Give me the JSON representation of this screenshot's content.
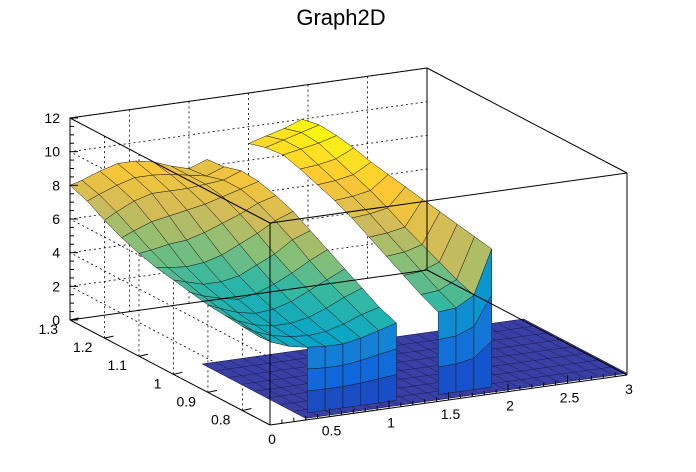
{
  "chart_data": {
    "type": "surface3d",
    "title": "Graph2D",
    "x_ticks": [
      "0",
      "0.5",
      "1",
      "1.5",
      "2",
      "2.5",
      "3"
    ],
    "y_ticks": [
      "0.8",
      "0.9",
      "1",
      "1.1",
      "1.2",
      "1.3"
    ],
    "z_ticks": [
      "0",
      "2",
      "4",
      "6",
      "8",
      "10",
      "12"
    ],
    "xlim": [
      0,
      3
    ],
    "ylim": [
      0.72,
      1.3
    ],
    "zlim": [
      0,
      12
    ],
    "grid": true,
    "colormap": [
      "#352a87",
      "#0f5cdd",
      "#1481d6",
      "#06a4ca",
      "#2eb7a4",
      "#87bf77",
      "#d1bb59",
      "#fec832",
      "#f9fb0e"
    ],
    "gap_x": [
      1.15,
      1.48
    ],
    "rows": [
      {
        "y": 1.3,
        "z": [
          8.0,
          8.2,
          8.6,
          8.9,
          8.9,
          8.7,
          8.3,
          8.0,
          8.4,
          8.8,
          9.0,
          9.3,
          9.6,
          10.0
        ]
      },
      {
        "y": 1.25,
        "z": [
          7.6,
          7.9,
          8.3,
          8.6,
          8.6,
          8.5,
          8.3,
          8.1,
          8.5,
          9.0,
          9.3,
          9.6,
          9.9,
          10.2
        ]
      },
      {
        "y": 1.2,
        "z": [
          7.0,
          7.4,
          7.9,
          8.2,
          8.2,
          8.2,
          8.3,
          8.4,
          8.8,
          9.2,
          9.4,
          9.6,
          9.8,
          10.1
        ]
      },
      {
        "y": 1.15,
        "z": [
          6.5,
          6.8,
          7.2,
          7.4,
          7.6,
          7.8,
          8.1,
          8.4,
          8.7,
          9.0,
          9.1,
          9.2,
          9.4,
          9.9
        ]
      },
      {
        "y": 1.1,
        "z": [
          6.1,
          6.2,
          6.4,
          6.5,
          6.8,
          7.2,
          7.6,
          8.1,
          8.4,
          8.6,
          8.7,
          8.8,
          9.0,
          9.6
        ]
      },
      {
        "y": 1.05,
        "z": [
          5.8,
          5.7,
          5.6,
          5.7,
          6.0,
          6.5,
          7.0,
          7.6,
          8.0,
          8.2,
          8.3,
          8.4,
          8.6,
          9.4
        ]
      },
      {
        "y": 1.0,
        "z": [
          5.6,
          5.4,
          5.1,
          5.1,
          5.3,
          5.8,
          6.3,
          7.0,
          7.4,
          7.7,
          7.8,
          7.9,
          8.1,
          9.2
        ]
      },
      {
        "y": 0.95,
        "z": [
          5.4,
          5.1,
          4.8,
          4.6,
          4.8,
          5.2,
          5.7,
          6.3,
          6.8,
          7.1,
          7.2,
          7.3,
          7.5,
          9.0
        ]
      },
      {
        "y": 0.9,
        "z": [
          5.2,
          4.9,
          4.5,
          4.3,
          4.4,
          4.7,
          5.2,
          5.7,
          6.2,
          6.5,
          6.6,
          6.7,
          7.0,
          8.8
        ]
      },
      {
        "y": 0.85,
        "z": [
          5.1,
          4.7,
          4.3,
          4.1,
          4.1,
          4.3,
          4.7,
          5.2,
          5.6,
          5.9,
          6.0,
          6.1,
          6.5,
          8.6
        ]
      },
      {
        "y": 0.8,
        "z": [
          5.0,
          4.6,
          4.2,
          4.0,
          3.9,
          4.0,
          4.3,
          4.7,
          5.0,
          5.3,
          5.4,
          5.5,
          6.0,
          8.4
        ]
      },
      {
        "y": 0.75,
        "z": [
          4.9,
          4.5,
          4.1,
          3.9,
          3.8,
          3.8,
          4.0,
          4.3,
          4.6,
          4.8,
          4.9,
          5.0,
          5.6,
          8.2
        ]
      }
    ],
    "x_cols": [
      0.0,
      0.1,
      0.25,
      0.4,
      0.55,
      0.7,
      0.85,
      1.0,
      1.15,
      1.3,
      1.5,
      1.65,
      1.8,
      1.95
    ]
  }
}
